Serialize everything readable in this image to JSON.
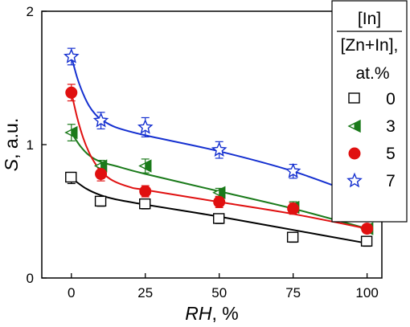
{
  "chart_data": {
    "type": "scatter",
    "title": "",
    "xlabel_var": "RH",
    "xlabel_unit": ", %",
    "ylabel_var": "S",
    "ylabel_unit": ", a.u.",
    "xlim": [
      -10,
      105
    ],
    "ylim": [
      0,
      2
    ],
    "xticks": [
      0,
      25,
      50,
      75,
      100
    ],
    "yticks": [
      0,
      1,
      2
    ],
    "grid": false,
    "legend_position": "top-right",
    "legend_title_numerator": "[In]",
    "legend_title_denominator": "[Zn+In],",
    "legend_title_unit": "at.%",
    "series": [
      {
        "name": "0",
        "marker": "open-square",
        "color": "#000000",
        "points": [
          {
            "x": 0,
            "y": 0.75,
            "err": 0.03
          },
          {
            "x": 10,
            "y": 0.57,
            "err": 0.02
          },
          {
            "x": 25,
            "y": 0.55,
            "err": 0.02
          },
          {
            "x": 50,
            "y": 0.44,
            "err": 0.02
          },
          {
            "x": 75,
            "y": 0.3,
            "err": 0.02
          },
          {
            "x": 100,
            "y": 0.27,
            "err": 0.02
          }
        ],
        "fit": [
          [
            0,
            0.75
          ],
          [
            5,
            0.67
          ],
          [
            10,
            0.62
          ],
          [
            15,
            0.59
          ],
          [
            25,
            0.55
          ],
          [
            50,
            0.46
          ],
          [
            75,
            0.36
          ],
          [
            100,
            0.26
          ]
        ]
      },
      {
        "name": "3",
        "marker": "left-triangle-half",
        "color": "#1a7a1a",
        "points": [
          {
            "x": 0,
            "y": 1.09,
            "err": 0.05
          },
          {
            "x": 10,
            "y": 0.84,
            "err": 0.03
          },
          {
            "x": 25,
            "y": 0.84,
            "err": 0.04
          },
          {
            "x": 50,
            "y": 0.64,
            "err": 0.02
          },
          {
            "x": 75,
            "y": 0.53,
            "err": 0.03
          },
          {
            "x": 100,
            "y": 0.37,
            "err": 0.02
          }
        ],
        "fit": [
          [
            0,
            1.09
          ],
          [
            3,
            0.99
          ],
          [
            6,
            0.92
          ],
          [
            10,
            0.87
          ],
          [
            15,
            0.84
          ],
          [
            25,
            0.78
          ],
          [
            50,
            0.65
          ],
          [
            75,
            0.52
          ],
          [
            100,
            0.37
          ]
        ]
      },
      {
        "name": "5",
        "marker": "filled-circle",
        "color": "#e01010",
        "points": [
          {
            "x": 0,
            "y": 1.39,
            "err": 0.05
          },
          {
            "x": 10,
            "y": 0.78,
            "err": 0.04
          },
          {
            "x": 25,
            "y": 0.65,
            "err": 0.03
          },
          {
            "x": 50,
            "y": 0.57,
            "err": 0.03
          },
          {
            "x": 75,
            "y": 0.52,
            "err": 0.03
          },
          {
            "x": 100,
            "y": 0.37,
            "err": 0.02
          }
        ],
        "fit": [
          [
            0,
            1.39
          ],
          [
            2,
            1.2
          ],
          [
            4,
            1.05
          ],
          [
            6,
            0.94
          ],
          [
            8,
            0.86
          ],
          [
            10,
            0.8
          ],
          [
            14,
            0.73
          ],
          [
            20,
            0.68
          ],
          [
            25,
            0.66
          ],
          [
            50,
            0.57
          ],
          [
            75,
            0.48
          ],
          [
            100,
            0.37
          ]
        ]
      },
      {
        "name": "7",
        "marker": "open-star",
        "color": "#1530d0",
        "points": [
          {
            "x": 0,
            "y": 1.66,
            "err": 0.05
          },
          {
            "x": 10,
            "y": 1.18,
            "err": 0.05
          },
          {
            "x": 25,
            "y": 1.13,
            "err": 0.06
          },
          {
            "x": 50,
            "y": 0.96,
            "err": 0.05
          },
          {
            "x": 75,
            "y": 0.8,
            "err": 0.04
          },
          {
            "x": 100,
            "y": 0.57,
            "err": 0.03
          }
        ],
        "fit": [
          [
            0,
            1.66
          ],
          [
            2,
            1.5
          ],
          [
            4,
            1.38
          ],
          [
            6,
            1.29
          ],
          [
            8,
            1.23
          ],
          [
            10,
            1.19
          ],
          [
            15,
            1.13
          ],
          [
            25,
            1.07
          ],
          [
            50,
            0.95
          ],
          [
            75,
            0.8
          ],
          [
            100,
            0.6
          ]
        ]
      }
    ]
  }
}
